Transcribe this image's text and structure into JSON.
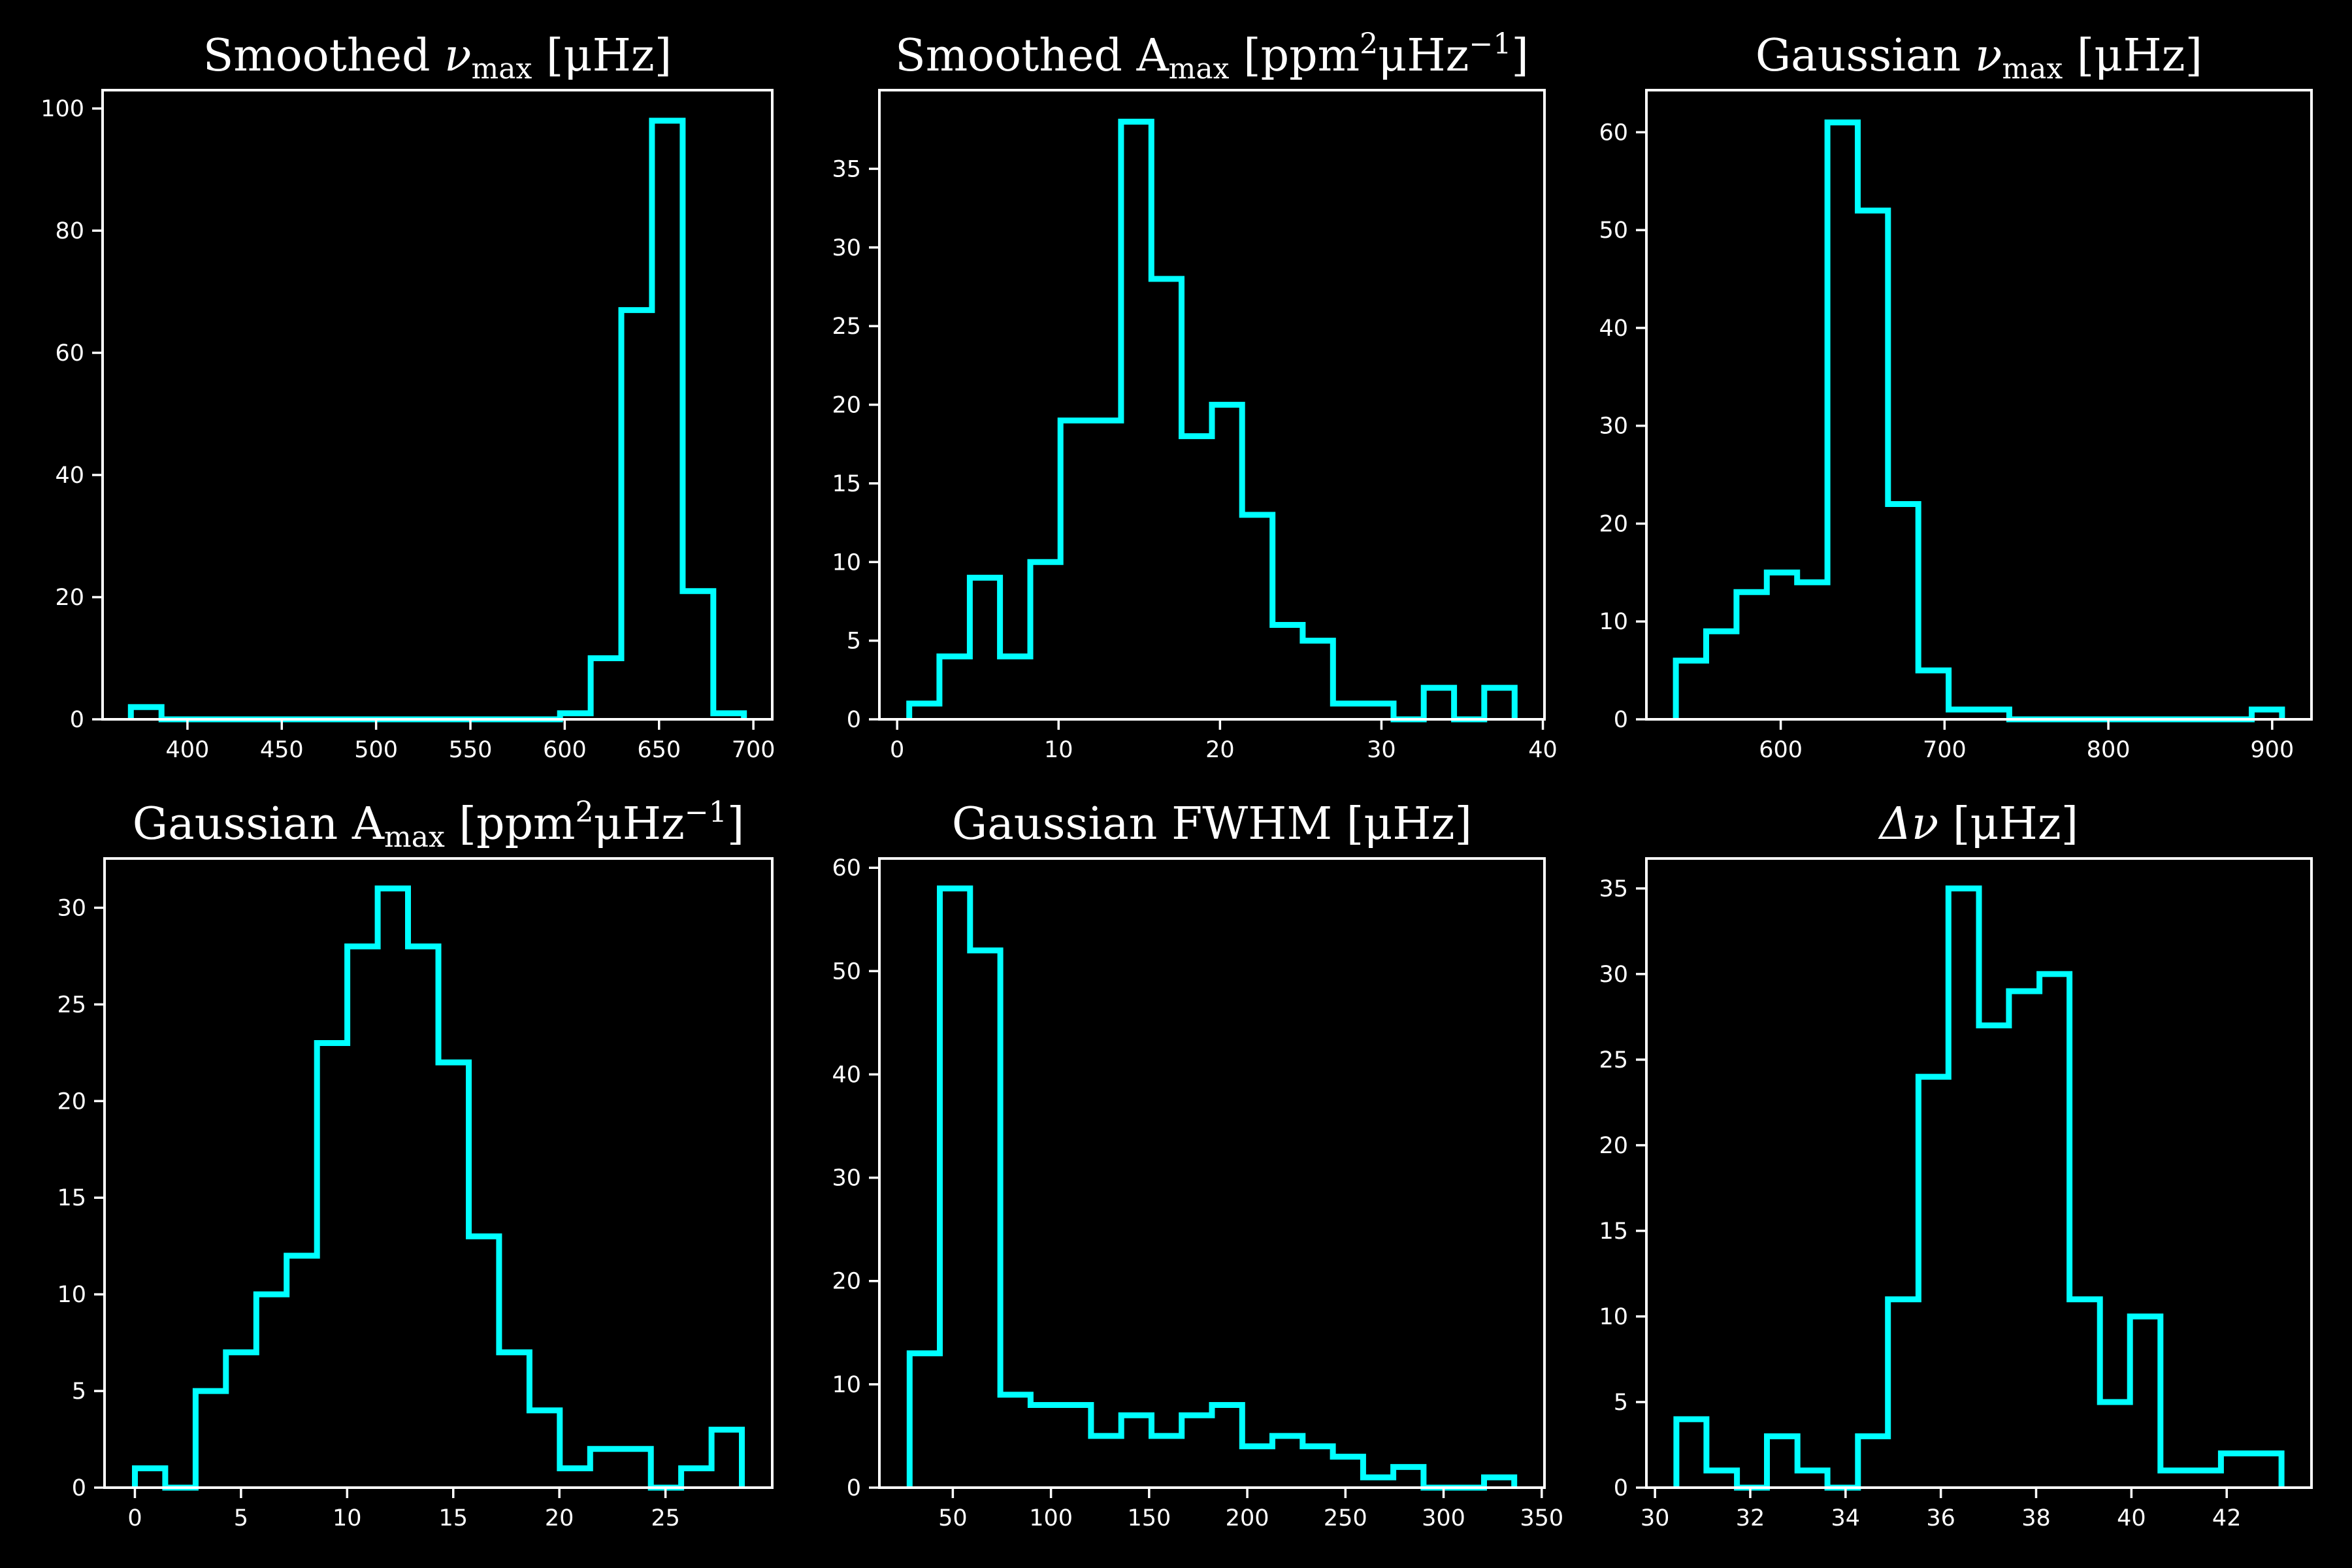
{
  "style": {
    "background": "#000000",
    "axis_color": "#ffffff",
    "series_color": "#00ffff"
  },
  "chart_data": [
    {
      "type": "histogram",
      "title": {
        "before": "Smoothed ",
        "symbol": "ν",
        "sub": "max",
        "unit": " [μHz]"
      },
      "edges": [
        370,
        386.25,
        402.5,
        418.75,
        435,
        451.25,
        467.5,
        483.75,
        500,
        516.25,
        532.5,
        548.75,
        565,
        581.25,
        597.5,
        613.75,
        630,
        646.25,
        662.5,
        678.75,
        695
      ],
      "counts": [
        2,
        0,
        0,
        0,
        0,
        0,
        0,
        0,
        0,
        0,
        0,
        0,
        0,
        0,
        1,
        10,
        67,
        98,
        21,
        1
      ],
      "xlim": [
        355,
        710
      ],
      "ylim": [
        0,
        103
      ],
      "xticks": [
        400,
        450,
        500,
        550,
        600,
        650,
        700
      ],
      "xtick_labels": [
        "400",
        "450",
        "500",
        "550",
        "600",
        "650",
        "700"
      ],
      "yticks": [
        0,
        20,
        40,
        60,
        80,
        100
      ],
      "ytick_labels": [
        "0",
        "20",
        "40",
        "60",
        "80",
        "100"
      ]
    },
    {
      "type": "histogram",
      "title": {
        "before": "Smoothed ",
        "symbol": "A",
        "sub": "max",
        "unit": " [ppm",
        "sup1": "2",
        "mid": "μHz",
        "sup2": "−1",
        "after": "]"
      },
      "edges": [
        0.75,
        2.62,
        4.5,
        6.37,
        8.25,
        10.12,
        12,
        13.87,
        15.75,
        17.62,
        19.5,
        21.37,
        23.25,
        25.12,
        27,
        28.87,
        30.75,
        32.62,
        34.5,
        36.37,
        38.25
      ],
      "counts": [
        1,
        4,
        9,
        4,
        10,
        19,
        19,
        38,
        28,
        18,
        20,
        13,
        6,
        5,
        1,
        1,
        0,
        2,
        0,
        2
      ],
      "xlim": [
        -1.1,
        40.1
      ],
      "ylim": [
        0,
        40
      ],
      "xticks": [
        0,
        10,
        20,
        30,
        40
      ],
      "xtick_labels": [
        "0",
        "10",
        "20",
        "30",
        "40"
      ],
      "yticks": [
        0,
        5,
        10,
        15,
        20,
        25,
        30,
        35
      ],
      "ytick_labels": [
        "0",
        "5",
        "10",
        "15",
        "20",
        "25",
        "30",
        "35"
      ]
    },
    {
      "type": "histogram",
      "title": {
        "before": "Gaussian ",
        "symbol": "ν",
        "sub": "max",
        "unit": " [μHz]"
      },
      "edges": [
        536,
        554.5,
        573,
        591.5,
        610,
        628.5,
        647,
        665.5,
        684,
        702.5,
        721,
        739.5,
        758,
        776.5,
        795,
        813.5,
        832,
        850.5,
        869,
        887.5,
        906
      ],
      "counts": [
        6,
        9,
        13,
        15,
        14,
        61,
        52,
        22,
        5,
        1,
        1,
        0,
        0,
        0,
        0,
        0,
        0,
        0,
        0,
        1
      ],
      "xlim": [
        518,
        924
      ],
      "ylim": [
        0,
        64.3
      ],
      "xticks": [
        600,
        700,
        800,
        900
      ],
      "xtick_labels": [
        "600",
        "700",
        "800",
        "900"
      ],
      "yticks": [
        0,
        10,
        20,
        30,
        40,
        50,
        60
      ],
      "ytick_labels": [
        "0",
        "10",
        "20",
        "30",
        "40",
        "50",
        "60"
      ]
    },
    {
      "type": "histogram",
      "title": {
        "before": "Gaussian ",
        "symbol": "A",
        "sub": "max",
        "unit": " [ppm",
        "sup1": "2",
        "mid": "μHz",
        "sup2": "−1",
        "after": "]"
      },
      "edges": [
        0,
        1.43,
        2.86,
        4.29,
        5.72,
        7.15,
        8.58,
        10.01,
        11.44,
        12.87,
        14.3,
        15.73,
        17.16,
        18.59,
        20.02,
        21.45,
        22.88,
        24.31,
        25.74,
        27.17,
        28.6
      ],
      "counts": [
        1,
        0,
        5,
        7,
        10,
        12,
        23,
        28,
        31,
        28,
        22,
        13,
        7,
        4,
        1,
        2,
        2,
        0,
        1,
        3
      ],
      "xlim": [
        -1.43,
        30.03
      ],
      "ylim": [
        0,
        32.55
      ],
      "xticks": [
        0,
        5,
        10,
        15,
        20,
        25
      ],
      "xtick_labels": [
        "0",
        "5",
        "10",
        "15",
        "20",
        "25"
      ],
      "yticks": [
        0,
        5,
        10,
        15,
        20,
        25,
        30
      ],
      "ytick_labels": [
        "0",
        "5",
        "10",
        "15",
        "20",
        "25",
        "30"
      ]
    },
    {
      "type": "histogram",
      "title": {
        "before": "Gaussian FWHM [μHz]"
      },
      "edges": [
        28,
        43.4,
        58.8,
        74.2,
        89.6,
        105,
        120.4,
        135.8,
        151.2,
        166.6,
        182,
        197.4,
        212.8,
        228.2,
        243.6,
        259,
        274.4,
        289.8,
        305.2,
        320.6,
        336
      ],
      "counts": [
        13,
        58,
        52,
        9,
        8,
        8,
        5,
        7,
        5,
        7,
        8,
        4,
        5,
        4,
        3,
        1,
        2,
        0,
        0,
        1
      ],
      "xlim": [
        12.6,
        351.4
      ],
      "ylim": [
        0,
        60.9
      ],
      "xticks": [
        50,
        100,
        150,
        200,
        250,
        300,
        350
      ],
      "xtick_labels": [
        "50",
        "100",
        "150",
        "200",
        "250",
        "300",
        "350"
      ],
      "yticks": [
        0,
        10,
        20,
        30,
        40,
        50,
        60
      ],
      "ytick_labels": [
        "0",
        "10",
        "20",
        "30",
        "40",
        "50",
        "60"
      ]
    },
    {
      "type": "histogram",
      "title": {
        "before": "",
        "symbol": "Δν",
        "unit": " [μHz]"
      },
      "edges": [
        30.45,
        31.08,
        31.72,
        32.35,
        32.99,
        33.62,
        34.26,
        34.89,
        35.53,
        36.16,
        36.8,
        37.43,
        38.07,
        38.7,
        39.34,
        39.97,
        40.61,
        41.24,
        41.88,
        42.51,
        43.15
      ],
      "counts": [
        4,
        1,
        0,
        3,
        1,
        0,
        3,
        11,
        24,
        35,
        27,
        29,
        30,
        11,
        5,
        10,
        1,
        1,
        2,
        2
      ],
      "xlim": [
        29.82,
        43.78
      ],
      "ylim": [
        0,
        36.75
      ],
      "xticks": [
        30,
        32,
        34,
        36,
        38,
        40,
        42
      ],
      "xtick_labels": [
        "30",
        "32",
        "34",
        "36",
        "38",
        "40",
        "42"
      ],
      "yticks": [
        0,
        5,
        10,
        15,
        20,
        25,
        30,
        35
      ],
      "ytick_labels": [
        "0",
        "5",
        "10",
        "15",
        "20",
        "25",
        "30",
        "35"
      ]
    }
  ]
}
